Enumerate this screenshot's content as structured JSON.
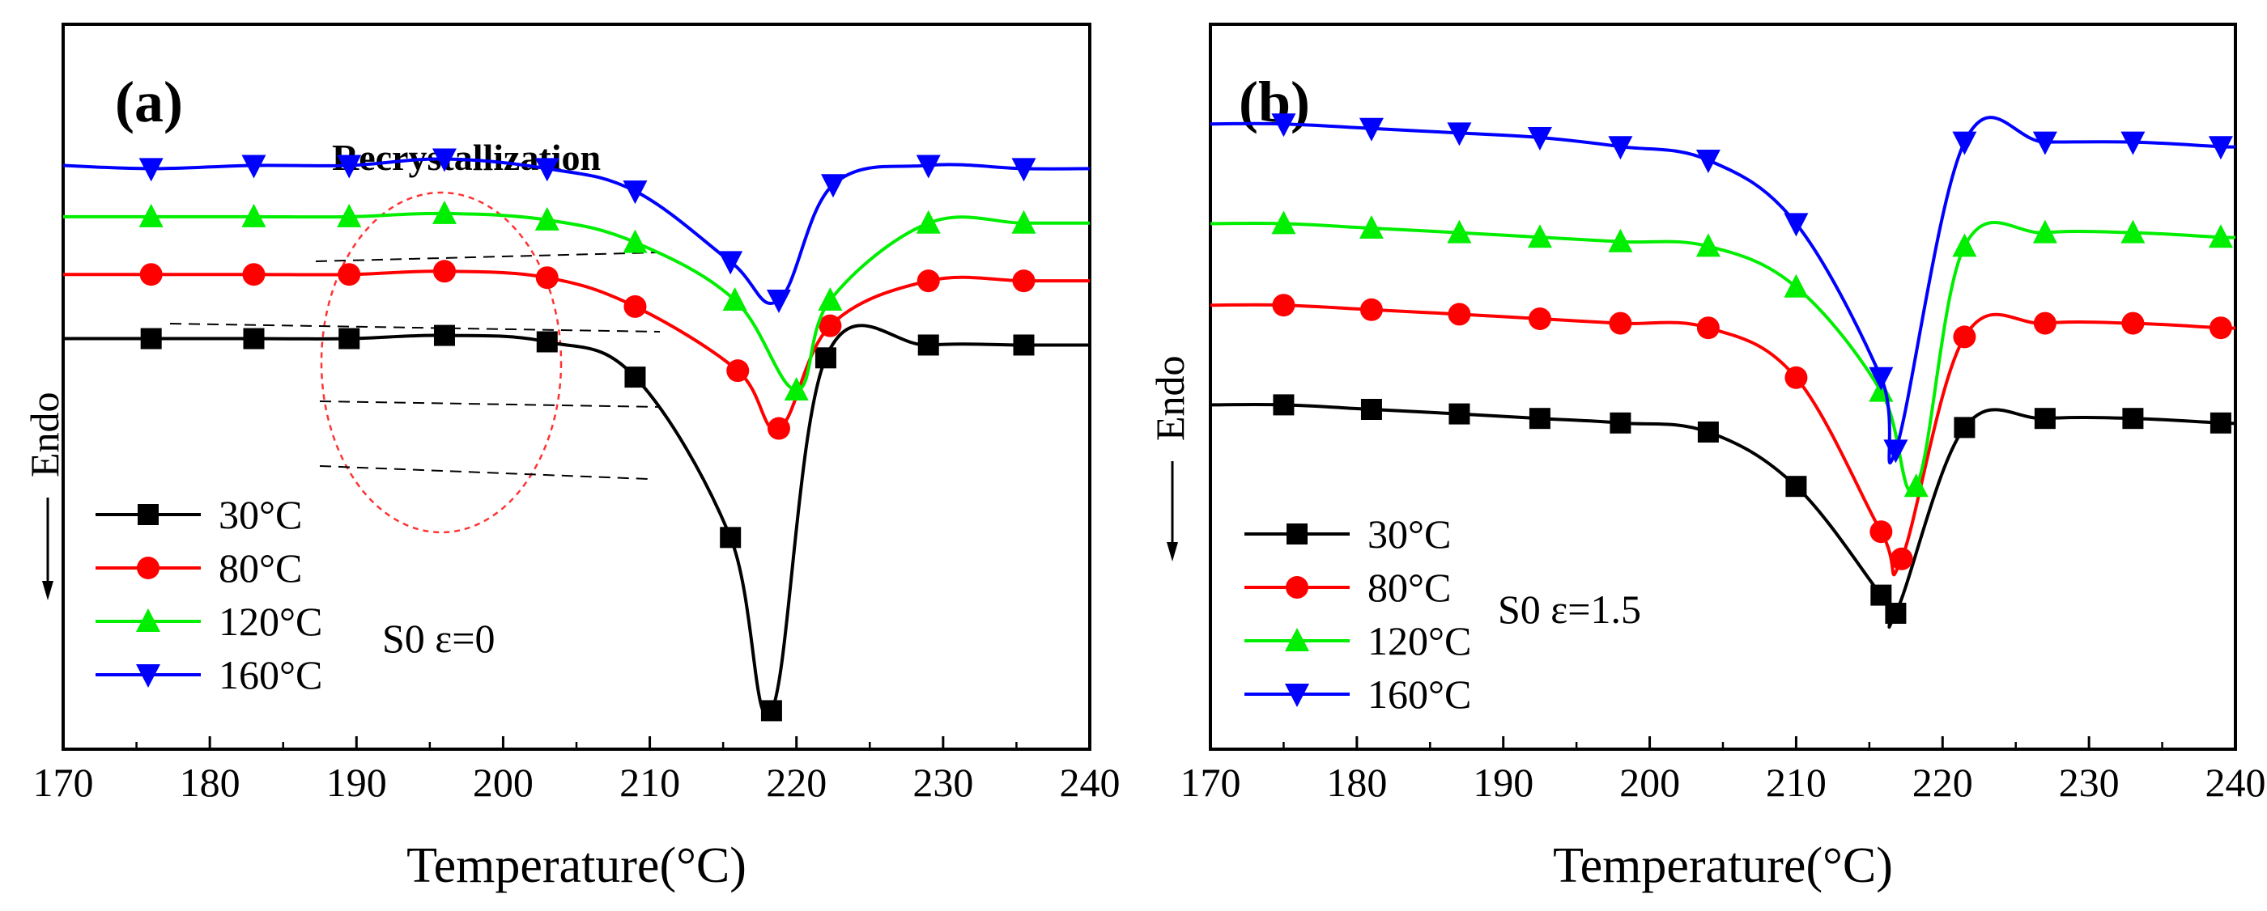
{
  "chart_data": [
    {
      "type": "line",
      "panel_label": "(a)",
      "xlabel": "Temperature(°C)",
      "ylabel": "Endo",
      "xlim": [
        170,
        240
      ],
      "xticks": [
        "170",
        "180",
        "190",
        "200",
        "210",
        "220",
        "230",
        "240"
      ],
      "yaxis": "arbitrary (heat flow, endo down)",
      "annotation": "S0 ε=0",
      "annotation_title": "Recrystallization",
      "legend_position": "bottom-left",
      "colors": [
        "#000000",
        "#ff0000",
        "#00ee00",
        "#0000ff"
      ],
      "markers": [
        "square",
        "circle",
        "triangle-up",
        "triangle-down"
      ],
      "series": [
        {
          "name": "30°C",
          "x": [
            170,
            176,
            183,
            189.5,
            196,
            203,
            209,
            215.5,
            218.3,
            222,
            229,
            235.5,
            240
          ],
          "y": [
            10.9,
            10.9,
            10.9,
            10.9,
            10.95,
            10.85,
            10.3,
            7.8,
            5.1,
            10.6,
            10.8,
            10.8,
            10.8
          ]
        },
        {
          "name": "80°C",
          "x": [
            170,
            176,
            183,
            189.5,
            196,
            203,
            209,
            216,
            218.8,
            222.3,
            229,
            235.5,
            240
          ],
          "y": [
            11.9,
            11.9,
            11.9,
            11.9,
            11.95,
            11.85,
            11.4,
            10.4,
            9.5,
            11.1,
            11.8,
            11.8,
            11.8
          ]
        },
        {
          "name": "120°C",
          "x": [
            170,
            176,
            183,
            189.5,
            196,
            203,
            209,
            215.8,
            220,
            222.3,
            229,
            235.5,
            240
          ],
          "y": [
            12.8,
            12.8,
            12.8,
            12.8,
            12.85,
            12.75,
            12.4,
            11.5,
            10.1,
            11.5,
            12.7,
            12.7,
            12.7
          ]
        },
        {
          "name": "160°C",
          "x": [
            170,
            176,
            183,
            189.5,
            196,
            203,
            209,
            215.5,
            218.8,
            222.5,
            229,
            235.5,
            240
          ],
          "y": [
            13.6,
            13.55,
            13.6,
            13.6,
            13.7,
            13.55,
            13.2,
            12.1,
            11.5,
            13.3,
            13.6,
            13.55,
            13.55
          ]
        }
      ]
    },
    {
      "type": "line",
      "panel_label": "(b)",
      "xlabel": "Temperature(°C)",
      "ylabel": "Endo",
      "xlim": [
        170,
        240
      ],
      "xticks": [
        "170",
        "180",
        "190",
        "200",
        "210",
        "220",
        "230",
        "240"
      ],
      "yaxis": "arbitrary (heat flow, endo down)",
      "annotation": "S0 ε=1.5",
      "legend_position": "bottom-left",
      "colors": [
        "#000000",
        "#ff0000",
        "#00ee00",
        "#0000ff"
      ],
      "markers": [
        "square",
        "circle",
        "triangle-up",
        "triangle-down"
      ],
      "series": [
        {
          "name": "30°C",
          "x": [
            170,
            175,
            181,
            187,
            192.5,
            198,
            204,
            210,
            215.8,
            216.8,
            221.5,
            227,
            233,
            239,
            240
          ],
          "y": [
            10.6,
            10.6,
            10.55,
            10.5,
            10.45,
            10.4,
            10.3,
            9.7,
            8.5,
            8.3,
            10.35,
            10.45,
            10.45,
            10.4,
            10.4
          ]
        },
        {
          "name": "80°C",
          "x": [
            170,
            175,
            181,
            187,
            192.5,
            198,
            204,
            210,
            215.8,
            217.2,
            221.5,
            227,
            233,
            239,
            240
          ],
          "y": [
            11.7,
            11.7,
            11.65,
            11.6,
            11.55,
            11.5,
            11.45,
            10.9,
            9.2,
            8.9,
            11.35,
            11.5,
            11.5,
            11.45,
            11.45
          ]
        },
        {
          "name": "120°C",
          "x": [
            170,
            175,
            181,
            187,
            192.5,
            198,
            204,
            210,
            215.8,
            218.2,
            221.5,
            227,
            233,
            239,
            240
          ],
          "y": [
            12.6,
            12.6,
            12.55,
            12.5,
            12.45,
            12.4,
            12.35,
            11.9,
            10.75,
            9.7,
            12.35,
            12.5,
            12.5,
            12.45,
            12.45
          ]
        },
        {
          "name": "160°C",
          "x": [
            170,
            175,
            181,
            187,
            192.5,
            198,
            204,
            210,
            215.8,
            216.8,
            221.5,
            227,
            233,
            239,
            240
          ],
          "y": [
            13.7,
            13.7,
            13.65,
            13.6,
            13.55,
            13.45,
            13.3,
            12.6,
            10.9,
            10.1,
            13.5,
            13.5,
            13.5,
            13.45,
            13.45
          ]
        }
      ]
    }
  ]
}
